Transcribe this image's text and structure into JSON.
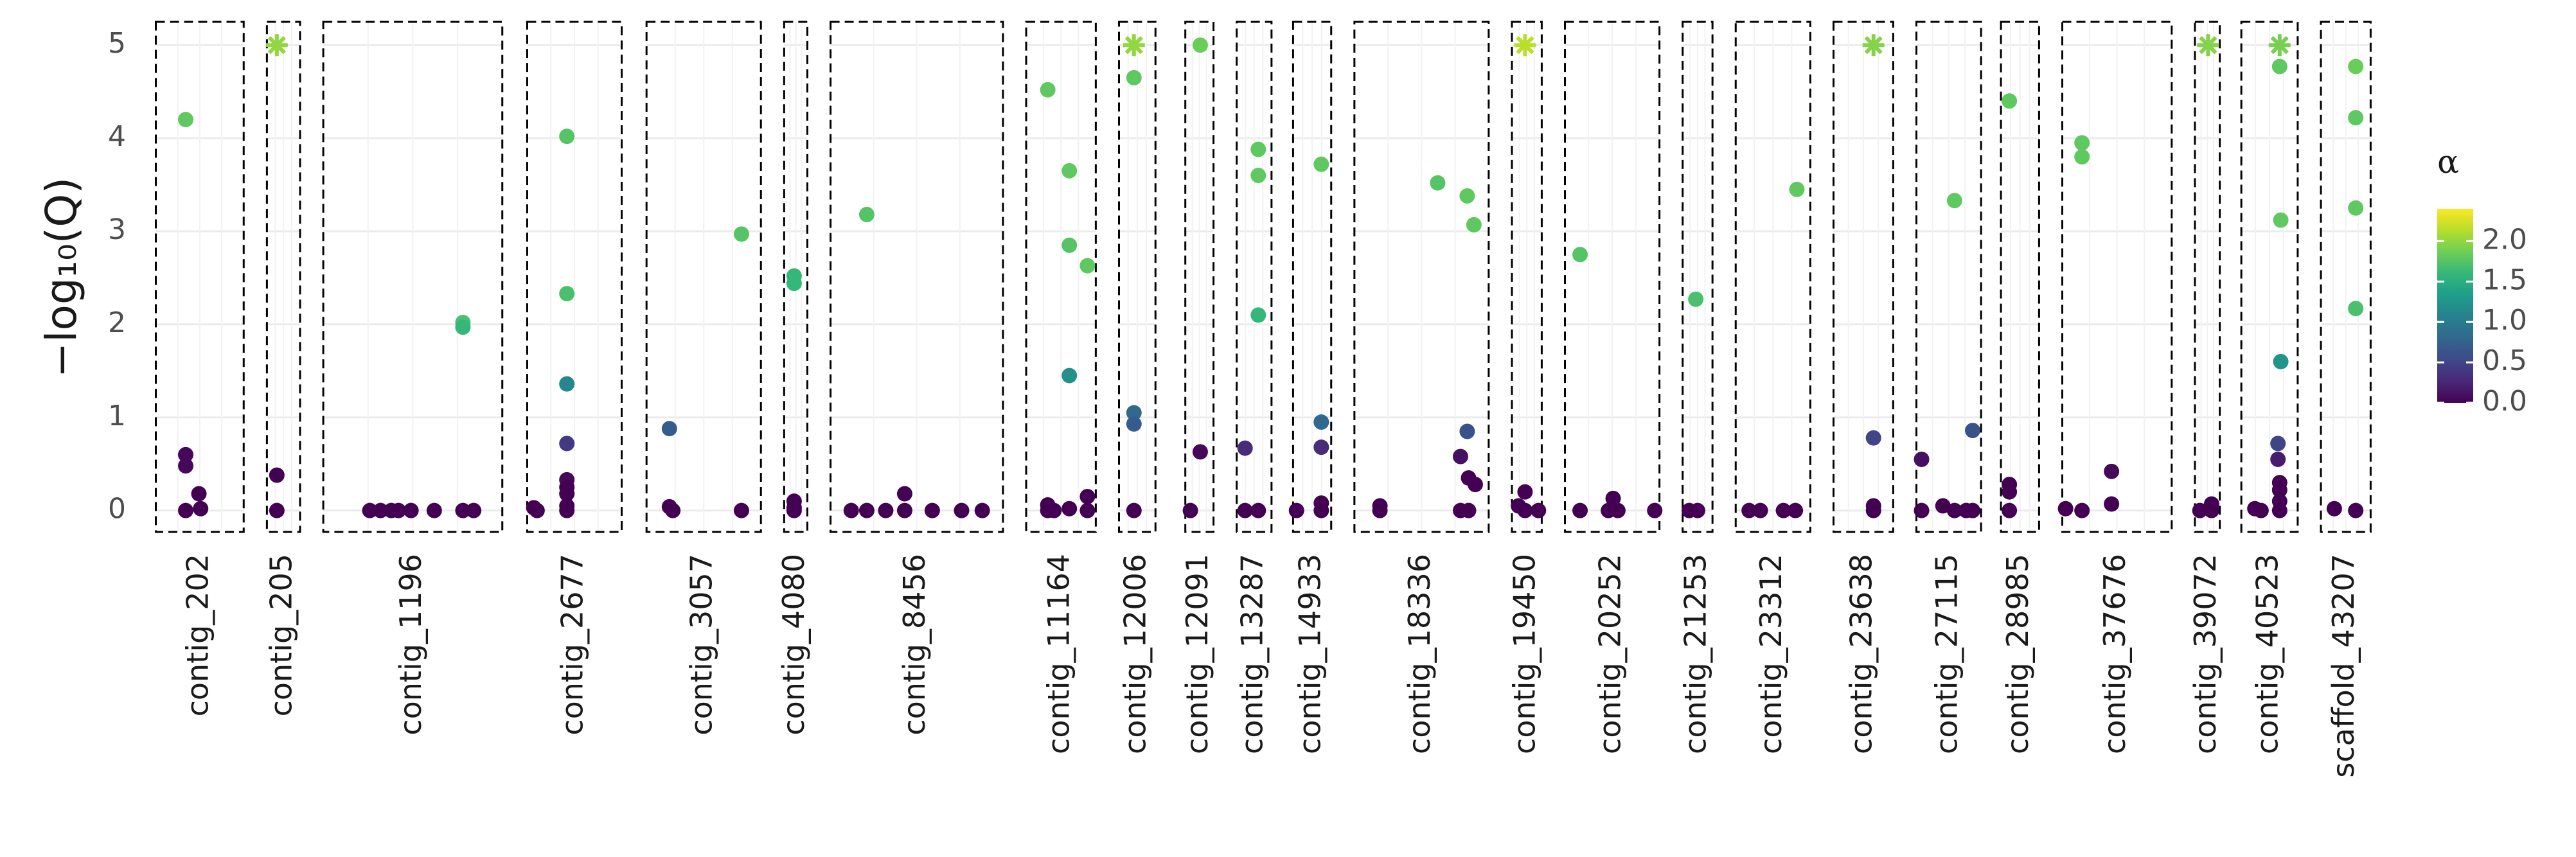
{
  "chart_data": {
    "type": "faceted-scatter",
    "ylabel": "−log₁₀(Q)",
    "ylim": [
      -0.23,
      5.25
    ],
    "yticks": [
      0,
      1,
      2,
      3,
      4,
      5
    ],
    "grid": true,
    "color_scale": {
      "title": "α",
      "colormap": "viridis",
      "lim": [
        0,
        2.4
      ],
      "ticks": [
        {
          "value": 0,
          "label": "0.0"
        },
        0.5,
        {
          "value": 1,
          "label": "1.0"
        },
        1.5,
        {
          "value": 2,
          "label": "2.0"
        }
      ]
    },
    "facets": [
      {
        "name": "contig_202",
        "points": [
          {
            "x": 0.34,
            "y": 4.2,
            "alpha": 1.8
          },
          {
            "x": 0.34,
            "y": 0.6,
            "alpha": 0.05
          },
          {
            "x": 0.34,
            "y": 0.48,
            "alpha": 0.05
          },
          {
            "x": 0.34,
            "y": 0,
            "alpha": 0
          },
          {
            "x": 0.49,
            "y": 0.18,
            "alpha": 0
          },
          {
            "x": 0.51,
            "y": 0.02,
            "alpha": 0
          }
        ]
      },
      {
        "name": "contig_205",
        "points": [
          {
            "x": 0.3,
            "y": 5,
            "alpha": 2.0,
            "shape": "star"
          },
          {
            "x": 0.3,
            "y": 0.38,
            "alpha": 0
          },
          {
            "x": 0.3,
            "y": 0,
            "alpha": 0
          }
        ]
      },
      {
        "name": "contig_1196",
        "points": [
          {
            "x": 0.78,
            "y": 2.02,
            "alpha": 1.7
          },
          {
            "x": 0.78,
            "y": 1.97,
            "alpha": 1.6
          },
          {
            "x": 0.26,
            "y": 0,
            "alpha": 0
          },
          {
            "x": 0.32,
            "y": 0,
            "alpha": 0
          },
          {
            "x": 0.38,
            "y": 0,
            "alpha": 0
          },
          {
            "x": 0.42,
            "y": 0,
            "alpha": 0
          },
          {
            "x": 0.49,
            "y": 0,
            "alpha": 0
          },
          {
            "x": 0.62,
            "y": 0,
            "alpha": 0
          },
          {
            "x": 0.78,
            "y": 0,
            "alpha": 0
          },
          {
            "x": 0.84,
            "y": 0,
            "alpha": 0
          }
        ]
      },
      {
        "name": "contig_2677",
        "points": [
          {
            "x": 0.42,
            "y": 4.02,
            "alpha": 1.75
          },
          {
            "x": 0.42,
            "y": 2.33,
            "alpha": 1.7
          },
          {
            "x": 0.42,
            "y": 1.36,
            "alpha": 1.1
          },
          {
            "x": 0.42,
            "y": 0.72,
            "alpha": 0.4
          },
          {
            "x": 0.42,
            "y": 0.33,
            "alpha": 0.05
          },
          {
            "x": 0.42,
            "y": 0.25,
            "alpha": 0
          },
          {
            "x": 0.42,
            "y": 0.18,
            "alpha": 0
          },
          {
            "x": 0.42,
            "y": 0.05,
            "alpha": 0
          },
          {
            "x": 0.42,
            "y": 0,
            "alpha": 0
          },
          {
            "x": 0.07,
            "y": 0.03,
            "alpha": 0
          },
          {
            "x": 0.105,
            "y": 0,
            "alpha": 0
          }
        ]
      },
      {
        "name": "contig_3057",
        "points": [
          {
            "x": 0.83,
            "y": 2.97,
            "alpha": 1.75
          },
          {
            "x": 0.2,
            "y": 0.88,
            "alpha": 0.7
          },
          {
            "x": 0.2,
            "y": 0.04,
            "alpha": 0
          },
          {
            "x": 0.23,
            "y": 0,
            "alpha": 0
          },
          {
            "x": 0.83,
            "y": 0,
            "alpha": 0
          }
        ]
      },
      {
        "name": "contig_4080",
        "points": [
          {
            "x": 0.43,
            "y": 2.52,
            "alpha": 1.6
          },
          {
            "x": 0.43,
            "y": 2.44,
            "alpha": 1.6
          },
          {
            "x": 0.43,
            "y": 0.1,
            "alpha": 0
          },
          {
            "x": 0.43,
            "y": 0.03,
            "alpha": 0
          },
          {
            "x": 0.43,
            "y": 0,
            "alpha": 0
          }
        ]
      },
      {
        "name": "contig_8456",
        "points": [
          {
            "x": 0.21,
            "y": 3.18,
            "alpha": 1.75
          },
          {
            "x": 0.12,
            "y": 0,
            "alpha": 0
          },
          {
            "x": 0.21,
            "y": 0,
            "alpha": 0
          },
          {
            "x": 0.32,
            "y": 0,
            "alpha": 0
          },
          {
            "x": 0.43,
            "y": 0.18,
            "alpha": 0
          },
          {
            "x": 0.43,
            "y": 0,
            "alpha": 0
          },
          {
            "x": 0.59,
            "y": 0,
            "alpha": 0
          },
          {
            "x": 0.76,
            "y": 0,
            "alpha": 0
          },
          {
            "x": 0.88,
            "y": 0,
            "alpha": 0
          }
        ]
      },
      {
        "name": "contig_11164",
        "points": [
          {
            "x": 0.31,
            "y": 4.52,
            "alpha": 1.8
          },
          {
            "x": 0.62,
            "y": 3.65,
            "alpha": 1.8
          },
          {
            "x": 0.62,
            "y": 2.85,
            "alpha": 1.75
          },
          {
            "x": 0.88,
            "y": 2.63,
            "alpha": 1.8
          },
          {
            "x": 0.62,
            "y": 1.45,
            "alpha": 1.2
          },
          {
            "x": 0.31,
            "y": 0.06,
            "alpha": 0
          },
          {
            "x": 0.31,
            "y": 0,
            "alpha": 0
          },
          {
            "x": 0.4,
            "y": 0,
            "alpha": 0
          },
          {
            "x": 0.62,
            "y": 0.02,
            "alpha": 0
          },
          {
            "x": 0.88,
            "y": 0.15,
            "alpha": 0
          },
          {
            "x": 0.88,
            "y": 0,
            "alpha": 0
          }
        ]
      },
      {
        "name": "contig_12006",
        "points": [
          {
            "x": 0.41,
            "y": 5,
            "alpha": 2.0,
            "shape": "star"
          },
          {
            "x": 0.41,
            "y": 4.65,
            "alpha": 1.8
          },
          {
            "x": 0.41,
            "y": 1.05,
            "alpha": 0.8
          },
          {
            "x": 0.41,
            "y": 0.93,
            "alpha": 0.7
          },
          {
            "x": 0.41,
            "y": 0,
            "alpha": 0
          }
        ]
      },
      {
        "name": "contig_12091",
        "points": [
          {
            "x": 0.53,
            "y": 5,
            "alpha": 1.85
          },
          {
            "x": 0.53,
            "y": 0.63,
            "alpha": 0.05
          },
          {
            "x": 0.18,
            "y": 0,
            "alpha": 0
          }
        ]
      },
      {
        "name": "contig_13287",
        "points": [
          {
            "x": 0.62,
            "y": 3.88,
            "alpha": 1.8
          },
          {
            "x": 0.62,
            "y": 3.6,
            "alpha": 1.8
          },
          {
            "x": 0.62,
            "y": 2.1,
            "alpha": 1.6
          },
          {
            "x": 0.24,
            "y": 0.67,
            "alpha": 0.3
          },
          {
            "x": 0.24,
            "y": 0,
            "alpha": 0
          },
          {
            "x": 0.62,
            "y": 0,
            "alpha": 0
          }
        ]
      },
      {
        "name": "contig_14933",
        "points": [
          {
            "x": 0.74,
            "y": 3.72,
            "alpha": 1.8
          },
          {
            "x": 0.74,
            "y": 0.95,
            "alpha": 0.8
          },
          {
            "x": 0.74,
            "y": 0.68,
            "alpha": 0.3
          },
          {
            "x": 0.74,
            "y": 0.08,
            "alpha": 0
          },
          {
            "x": 0.74,
            "y": 0,
            "alpha": 0
          },
          {
            "x": 0.09,
            "y": 0,
            "alpha": 0
          }
        ]
      },
      {
        "name": "contig_18336",
        "points": [
          {
            "x": 0.62,
            "y": 3.52,
            "alpha": 1.75
          },
          {
            "x": 0.84,
            "y": 3.38,
            "alpha": 1.8
          },
          {
            "x": 0.89,
            "y": 3.07,
            "alpha": 1.8
          },
          {
            "x": 0.84,
            "y": 0.85,
            "alpha": 0.6
          },
          {
            "x": 0.79,
            "y": 0.58,
            "alpha": 0.1
          },
          {
            "x": 0.85,
            "y": 0.35,
            "alpha": 0
          },
          {
            "x": 0.9,
            "y": 0.28,
            "alpha": 0
          },
          {
            "x": 0.79,
            "y": 0,
            "alpha": 0
          },
          {
            "x": 0.85,
            "y": 0,
            "alpha": 0
          },
          {
            "x": 0.19,
            "y": 0.05,
            "alpha": 0
          },
          {
            "x": 0.19,
            "y": 0,
            "alpha": 0
          }
        ]
      },
      {
        "name": "contig_19450",
        "points": [
          {
            "x": 0.44,
            "y": 5,
            "alpha": 2.15,
            "shape": "star"
          },
          {
            "x": 0.44,
            "y": 0.2,
            "alpha": 0
          },
          {
            "x": 0.22,
            "y": 0.05,
            "alpha": 0
          },
          {
            "x": 0.44,
            "y": 0,
            "alpha": 0
          },
          {
            "x": 0.89,
            "y": 0,
            "alpha": 0
          }
        ]
      },
      {
        "name": "contig_20252",
        "points": [
          {
            "x": 0.16,
            "y": 2.75,
            "alpha": 1.75
          },
          {
            "x": 0.51,
            "y": 0.13,
            "alpha": 0
          },
          {
            "x": 0.16,
            "y": 0,
            "alpha": 0
          },
          {
            "x": 0.46,
            "y": 0,
            "alpha": 0
          },
          {
            "x": 0.56,
            "y": 0,
            "alpha": 0
          },
          {
            "x": 0.95,
            "y": 0,
            "alpha": 0
          }
        ]
      },
      {
        "name": "contig_21253",
        "points": [
          {
            "x": 0.44,
            "y": 2.27,
            "alpha": 1.7
          },
          {
            "x": 0.22,
            "y": 0,
            "alpha": 0
          },
          {
            "x": 0.5,
            "y": 0,
            "alpha": 0
          }
        ]
      },
      {
        "name": "contig_23312",
        "points": [
          {
            "x": 0.82,
            "y": 3.45,
            "alpha": 1.8
          },
          {
            "x": 0.18,
            "y": 0,
            "alpha": 0
          },
          {
            "x": 0.33,
            "y": 0,
            "alpha": 0
          },
          {
            "x": 0.64,
            "y": 0,
            "alpha": 0
          },
          {
            "x": 0.8,
            "y": 0,
            "alpha": 0
          }
        ]
      },
      {
        "name": "contig_23638",
        "points": [
          {
            "x": 0.67,
            "y": 5,
            "alpha": 1.95,
            "shape": "star"
          },
          {
            "x": 0.67,
            "y": 0.78,
            "alpha": 0.5
          },
          {
            "x": 0.67,
            "y": 0.05,
            "alpha": 0
          },
          {
            "x": 0.67,
            "y": 0,
            "alpha": 0
          }
        ]
      },
      {
        "name": "contig_27115",
        "points": [
          {
            "x": 0.59,
            "y": 3.33,
            "alpha": 1.8
          },
          {
            "x": 0.87,
            "y": 0.86,
            "alpha": 0.6
          },
          {
            "x": 0.08,
            "y": 0.55,
            "alpha": 0.1
          },
          {
            "x": 0.41,
            "y": 0.05,
            "alpha": 0
          },
          {
            "x": 0.59,
            "y": 0,
            "alpha": 0
          },
          {
            "x": 0.77,
            "y": 0,
            "alpha": 0
          },
          {
            "x": 0.87,
            "y": 0,
            "alpha": 0
          },
          {
            "x": 0.08,
            "y": 0,
            "alpha": 0
          }
        ]
      },
      {
        "name": "contig_28985",
        "points": [
          {
            "x": 0.22,
            "y": 4.4,
            "alpha": 1.8
          },
          {
            "x": 0.22,
            "y": 0.28,
            "alpha": 0
          },
          {
            "x": 0.22,
            "y": 0.2,
            "alpha": 0
          },
          {
            "x": 0.22,
            "y": 0,
            "alpha": 0
          }
        ]
      },
      {
        "name": "contig_37676",
        "points": [
          {
            "x": 0.18,
            "y": 3.95,
            "alpha": 1.8
          },
          {
            "x": 0.18,
            "y": 3.8,
            "alpha": 1.8
          },
          {
            "x": 0.45,
            "y": 0.42,
            "alpha": 0.05
          },
          {
            "x": 0.45,
            "y": 0.07,
            "alpha": 0
          },
          {
            "x": 0.03,
            "y": 0.02,
            "alpha": 0
          },
          {
            "x": 0.18,
            "y": 0,
            "alpha": 0
          }
        ]
      },
      {
        "name": "contig_39072",
        "points": [
          {
            "x": 0.53,
            "y": 5,
            "alpha": 1.95,
            "shape": "star"
          },
          {
            "x": 0.67,
            "y": 0.07,
            "alpha": 0
          },
          {
            "x": 0.67,
            "y": 0,
            "alpha": 0
          },
          {
            "x": 0.2,
            "y": 0,
            "alpha": 0
          }
        ]
      },
      {
        "name": "contig_40523",
        "points": [
          {
            "x": 0.68,
            "y": 5,
            "alpha": 1.9,
            "shape": "star"
          },
          {
            "x": 0.68,
            "y": 4.77,
            "alpha": 1.8
          },
          {
            "x": 0.7,
            "y": 3.12,
            "alpha": 1.8
          },
          {
            "x": 0.7,
            "y": 1.6,
            "alpha": 1.25
          },
          {
            "x": 0.65,
            "y": 0.72,
            "alpha": 0.5
          },
          {
            "x": 0.65,
            "y": 0.55,
            "alpha": 0.2
          },
          {
            "x": 0.68,
            "y": 0.3,
            "alpha": 0
          },
          {
            "x": 0.68,
            "y": 0.22,
            "alpha": 0
          },
          {
            "x": 0.68,
            "y": 0.1,
            "alpha": 0
          },
          {
            "x": 0.68,
            "y": 0,
            "alpha": 0
          },
          {
            "x": 0.24,
            "y": 0.02,
            "alpha": 0
          },
          {
            "x": 0.35,
            "y": 0,
            "alpha": 0
          }
        ]
      },
      {
        "name": "scaffold_43207",
        "points": [
          {
            "x": 0.7,
            "y": 4.77,
            "alpha": 1.85
          },
          {
            "x": 0.7,
            "y": 4.22,
            "alpha": 1.8
          },
          {
            "x": 0.7,
            "y": 3.25,
            "alpha": 1.8
          },
          {
            "x": 0.7,
            "y": 2.17,
            "alpha": 1.7
          },
          {
            "x": 0.27,
            "y": 0.02,
            "alpha": 0
          },
          {
            "x": 0.7,
            "y": 0,
            "alpha": 0
          }
        ]
      }
    ]
  }
}
